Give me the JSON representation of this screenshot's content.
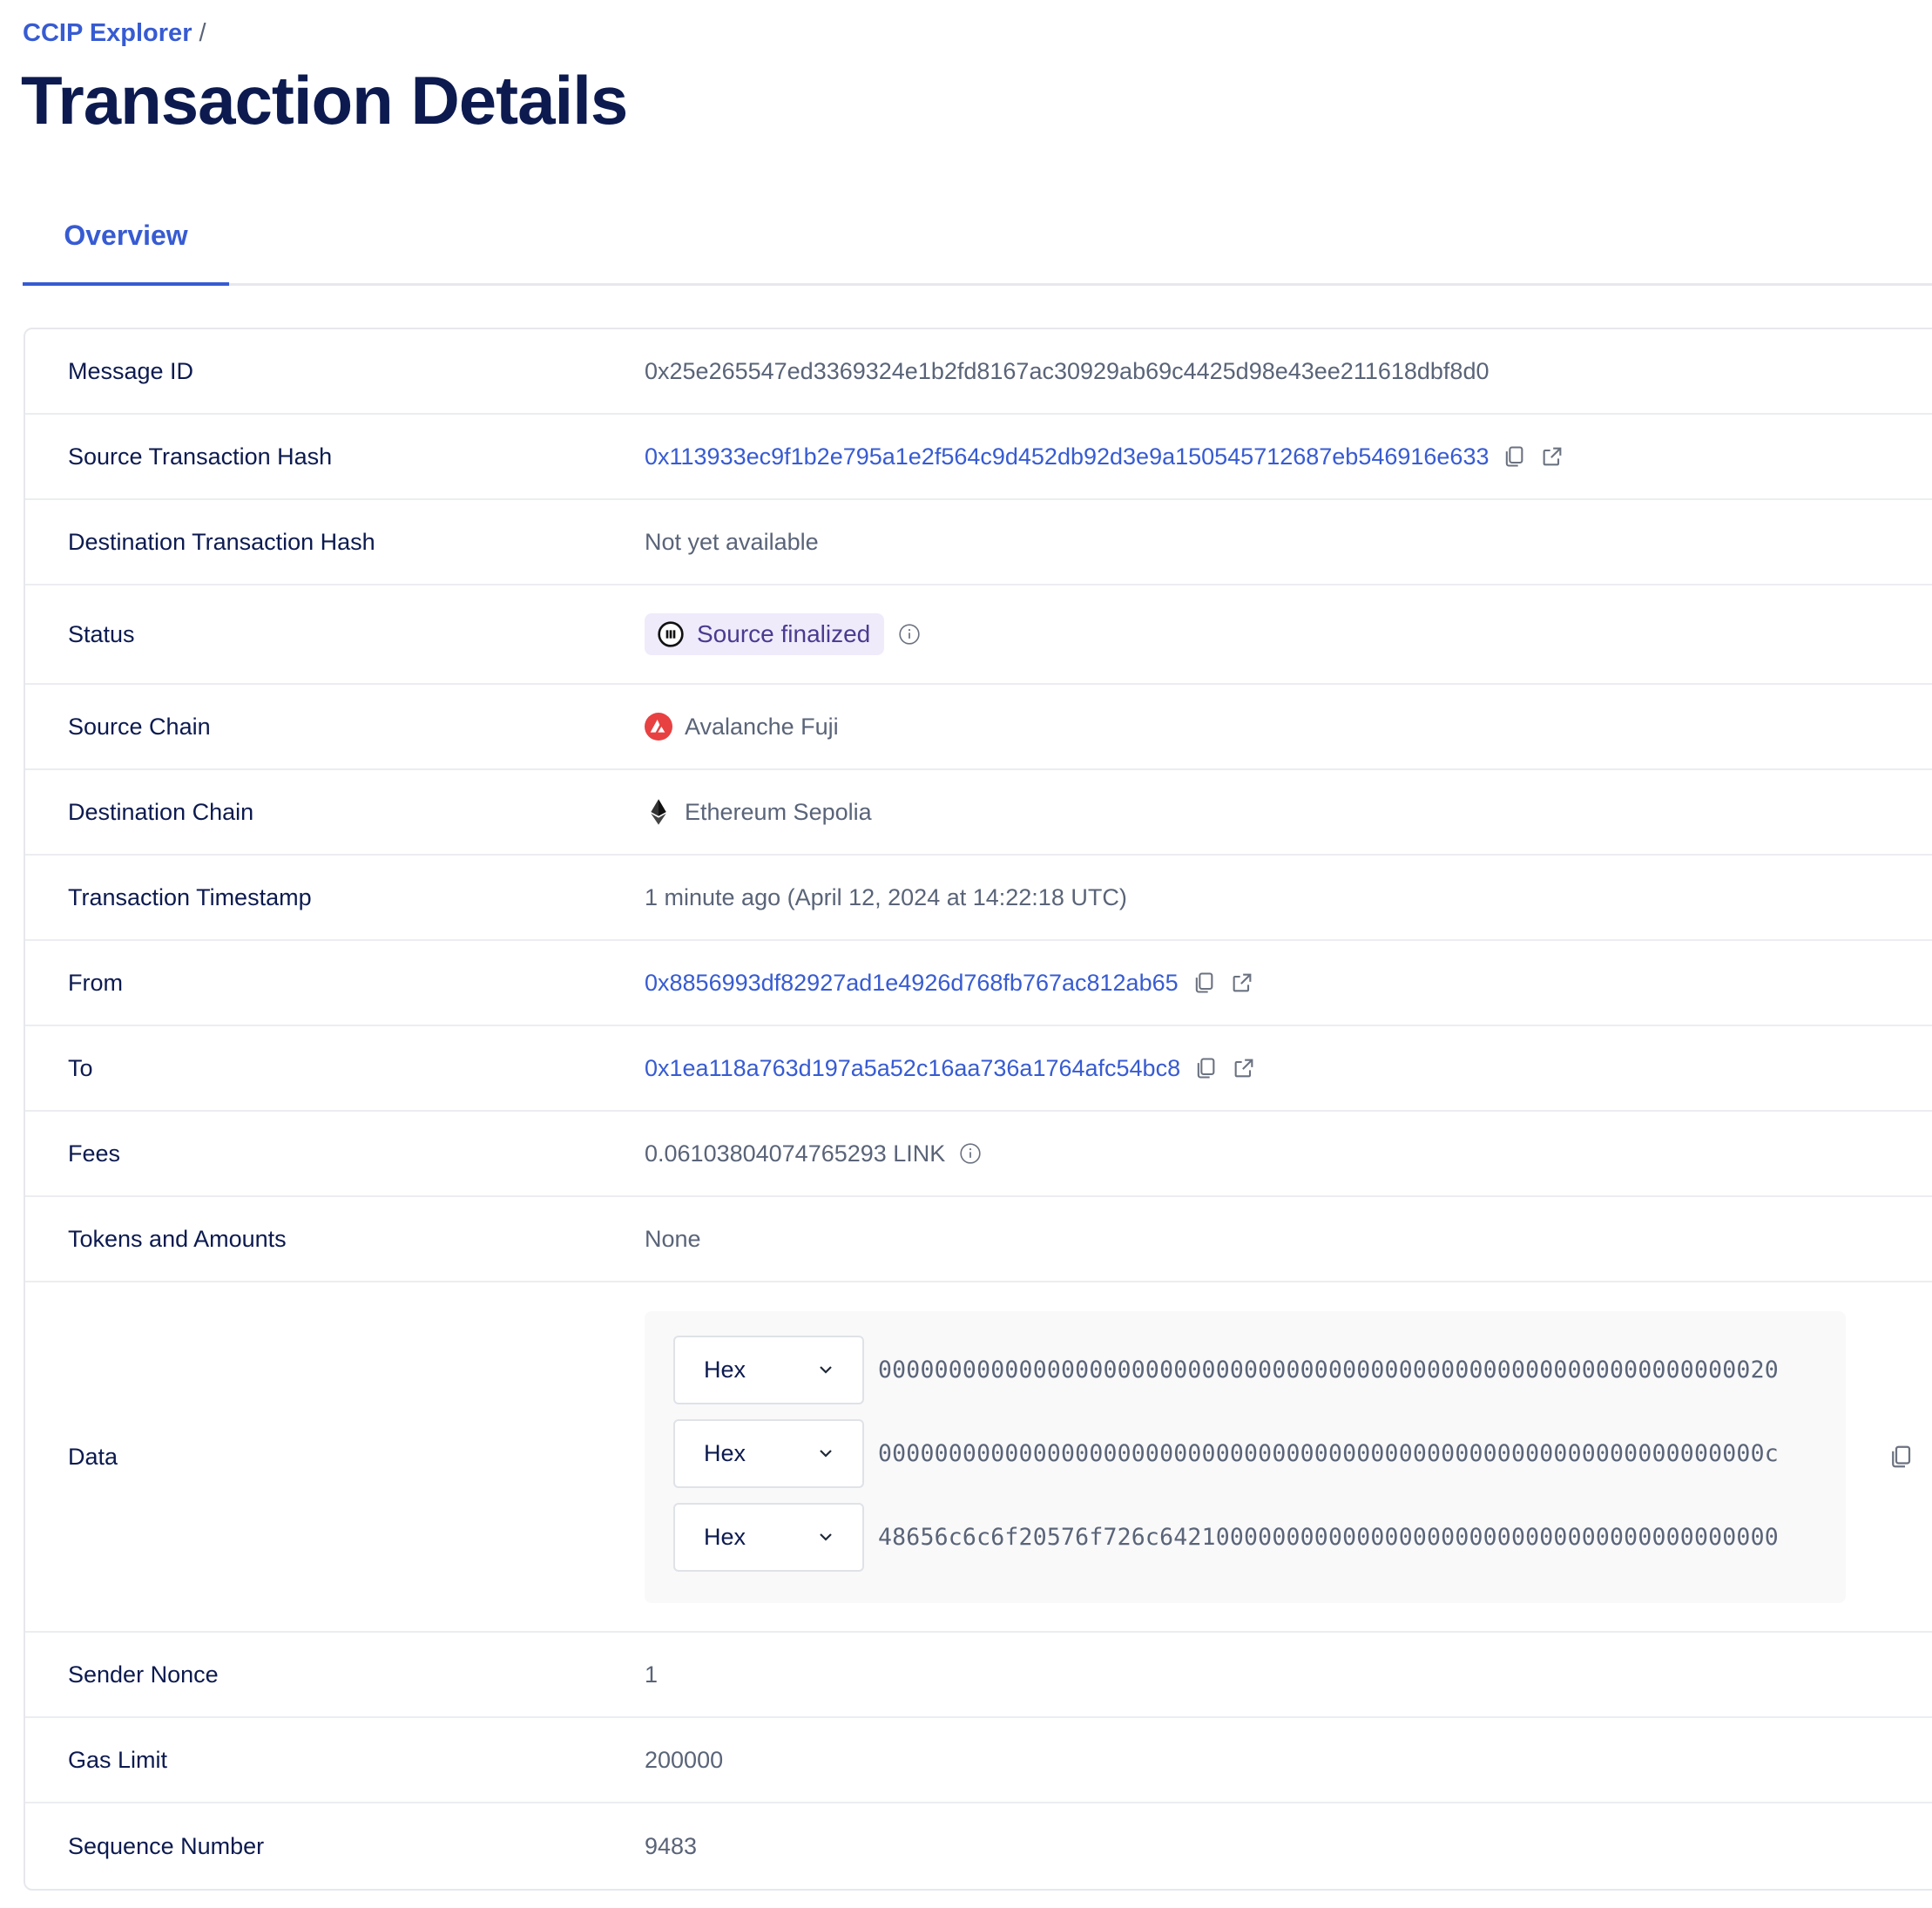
{
  "breadcrumb": {
    "root": "CCIP Explorer",
    "separator": "/"
  },
  "page_title": "Transaction Details",
  "tabs": [
    {
      "label": "Overview",
      "active": true
    }
  ],
  "colors": {
    "accent": "#375bd2",
    "title": "#0c1a4f",
    "status_bg": "#efebfb",
    "status_text": "#4a3b8f",
    "avalanche": "#e84142"
  },
  "details": {
    "message_id": {
      "label": "Message ID",
      "value": "0x25e265547ed3369324e1b2fd8167ac30929ab69c4425d98e43ee211618dbf8d0"
    },
    "source_tx": {
      "label": "Source Transaction Hash",
      "value": "0x113933ec9f1b2e795a1e2f564c9d452db92d3e9a150545712687eb546916e633"
    },
    "dest_tx": {
      "label": "Destination Transaction Hash",
      "value": "Not yet available"
    },
    "status": {
      "label": "Status",
      "value": "Source finalized",
      "icon": "pause-circle-icon"
    },
    "source_chain": {
      "label": "Source Chain",
      "value": "Avalanche Fuji",
      "icon": "avalanche-icon"
    },
    "dest_chain": {
      "label": "Destination Chain",
      "value": "Ethereum Sepolia",
      "icon": "ethereum-icon"
    },
    "timestamp": {
      "label": "Transaction Timestamp",
      "value": "1 minute ago (April 12, 2024 at 14:22:18 UTC)"
    },
    "from": {
      "label": "From",
      "value": "0x8856993df82927ad1e4926d768fb767ac812ab65"
    },
    "to": {
      "label": "To",
      "value": "0x1ea118a763d197a5a52c16aa736a1764afc54bc8"
    },
    "fees": {
      "label": "Fees",
      "value": "0.06103804074765293 LINK"
    },
    "tokens": {
      "label": "Tokens and Amounts",
      "value": "None"
    },
    "data": {
      "label": "Data",
      "rows": [
        {
          "format": "Hex",
          "value": "0000000000000000000000000000000000000000000000000000000000000020"
        },
        {
          "format": "Hex",
          "value": "000000000000000000000000000000000000000000000000000000000000000c"
        },
        {
          "format": "Hex",
          "value": "48656c6c6f20576f726c64210000000000000000000000000000000000000000"
        }
      ]
    },
    "nonce": {
      "label": "Sender Nonce",
      "value": "1"
    },
    "gas_limit": {
      "label": "Gas Limit",
      "value": "200000"
    },
    "sequence": {
      "label": "Sequence Number",
      "value": "9483"
    }
  }
}
